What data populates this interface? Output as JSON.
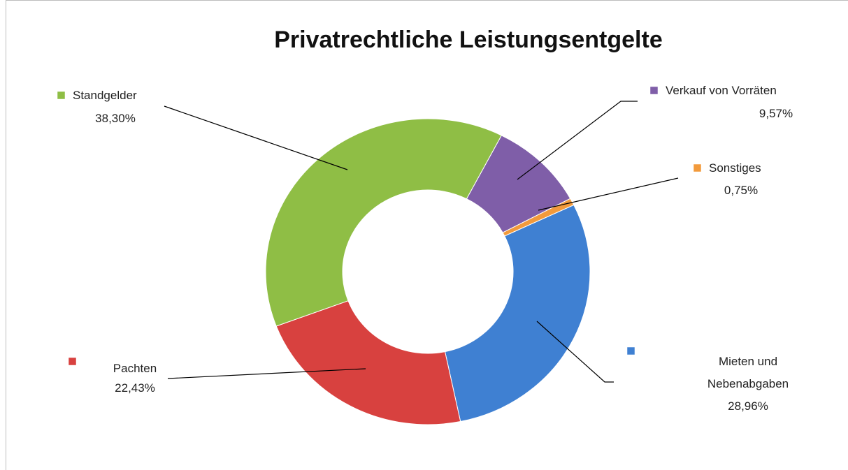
{
  "chart_data": {
    "type": "donut",
    "title": "Privatrechtliche Leistungsentgelte",
    "categories": [
      "Verkauf von Vorräten",
      "Sonstiges",
      "Mieten und Nebenabgaben",
      "Pachten",
      "Standgelder"
    ],
    "values": [
      9.57,
      0.75,
      28.96,
      22.43,
      38.3
    ],
    "value_labels": [
      "9,57%",
      "0,75%",
      "28,96%",
      "22,43%",
      "38,30%"
    ],
    "colors": [
      "#7f5ea8",
      "#f29a3c",
      "#3f80d2",
      "#d8413f",
      "#8fbe45"
    ]
  }
}
